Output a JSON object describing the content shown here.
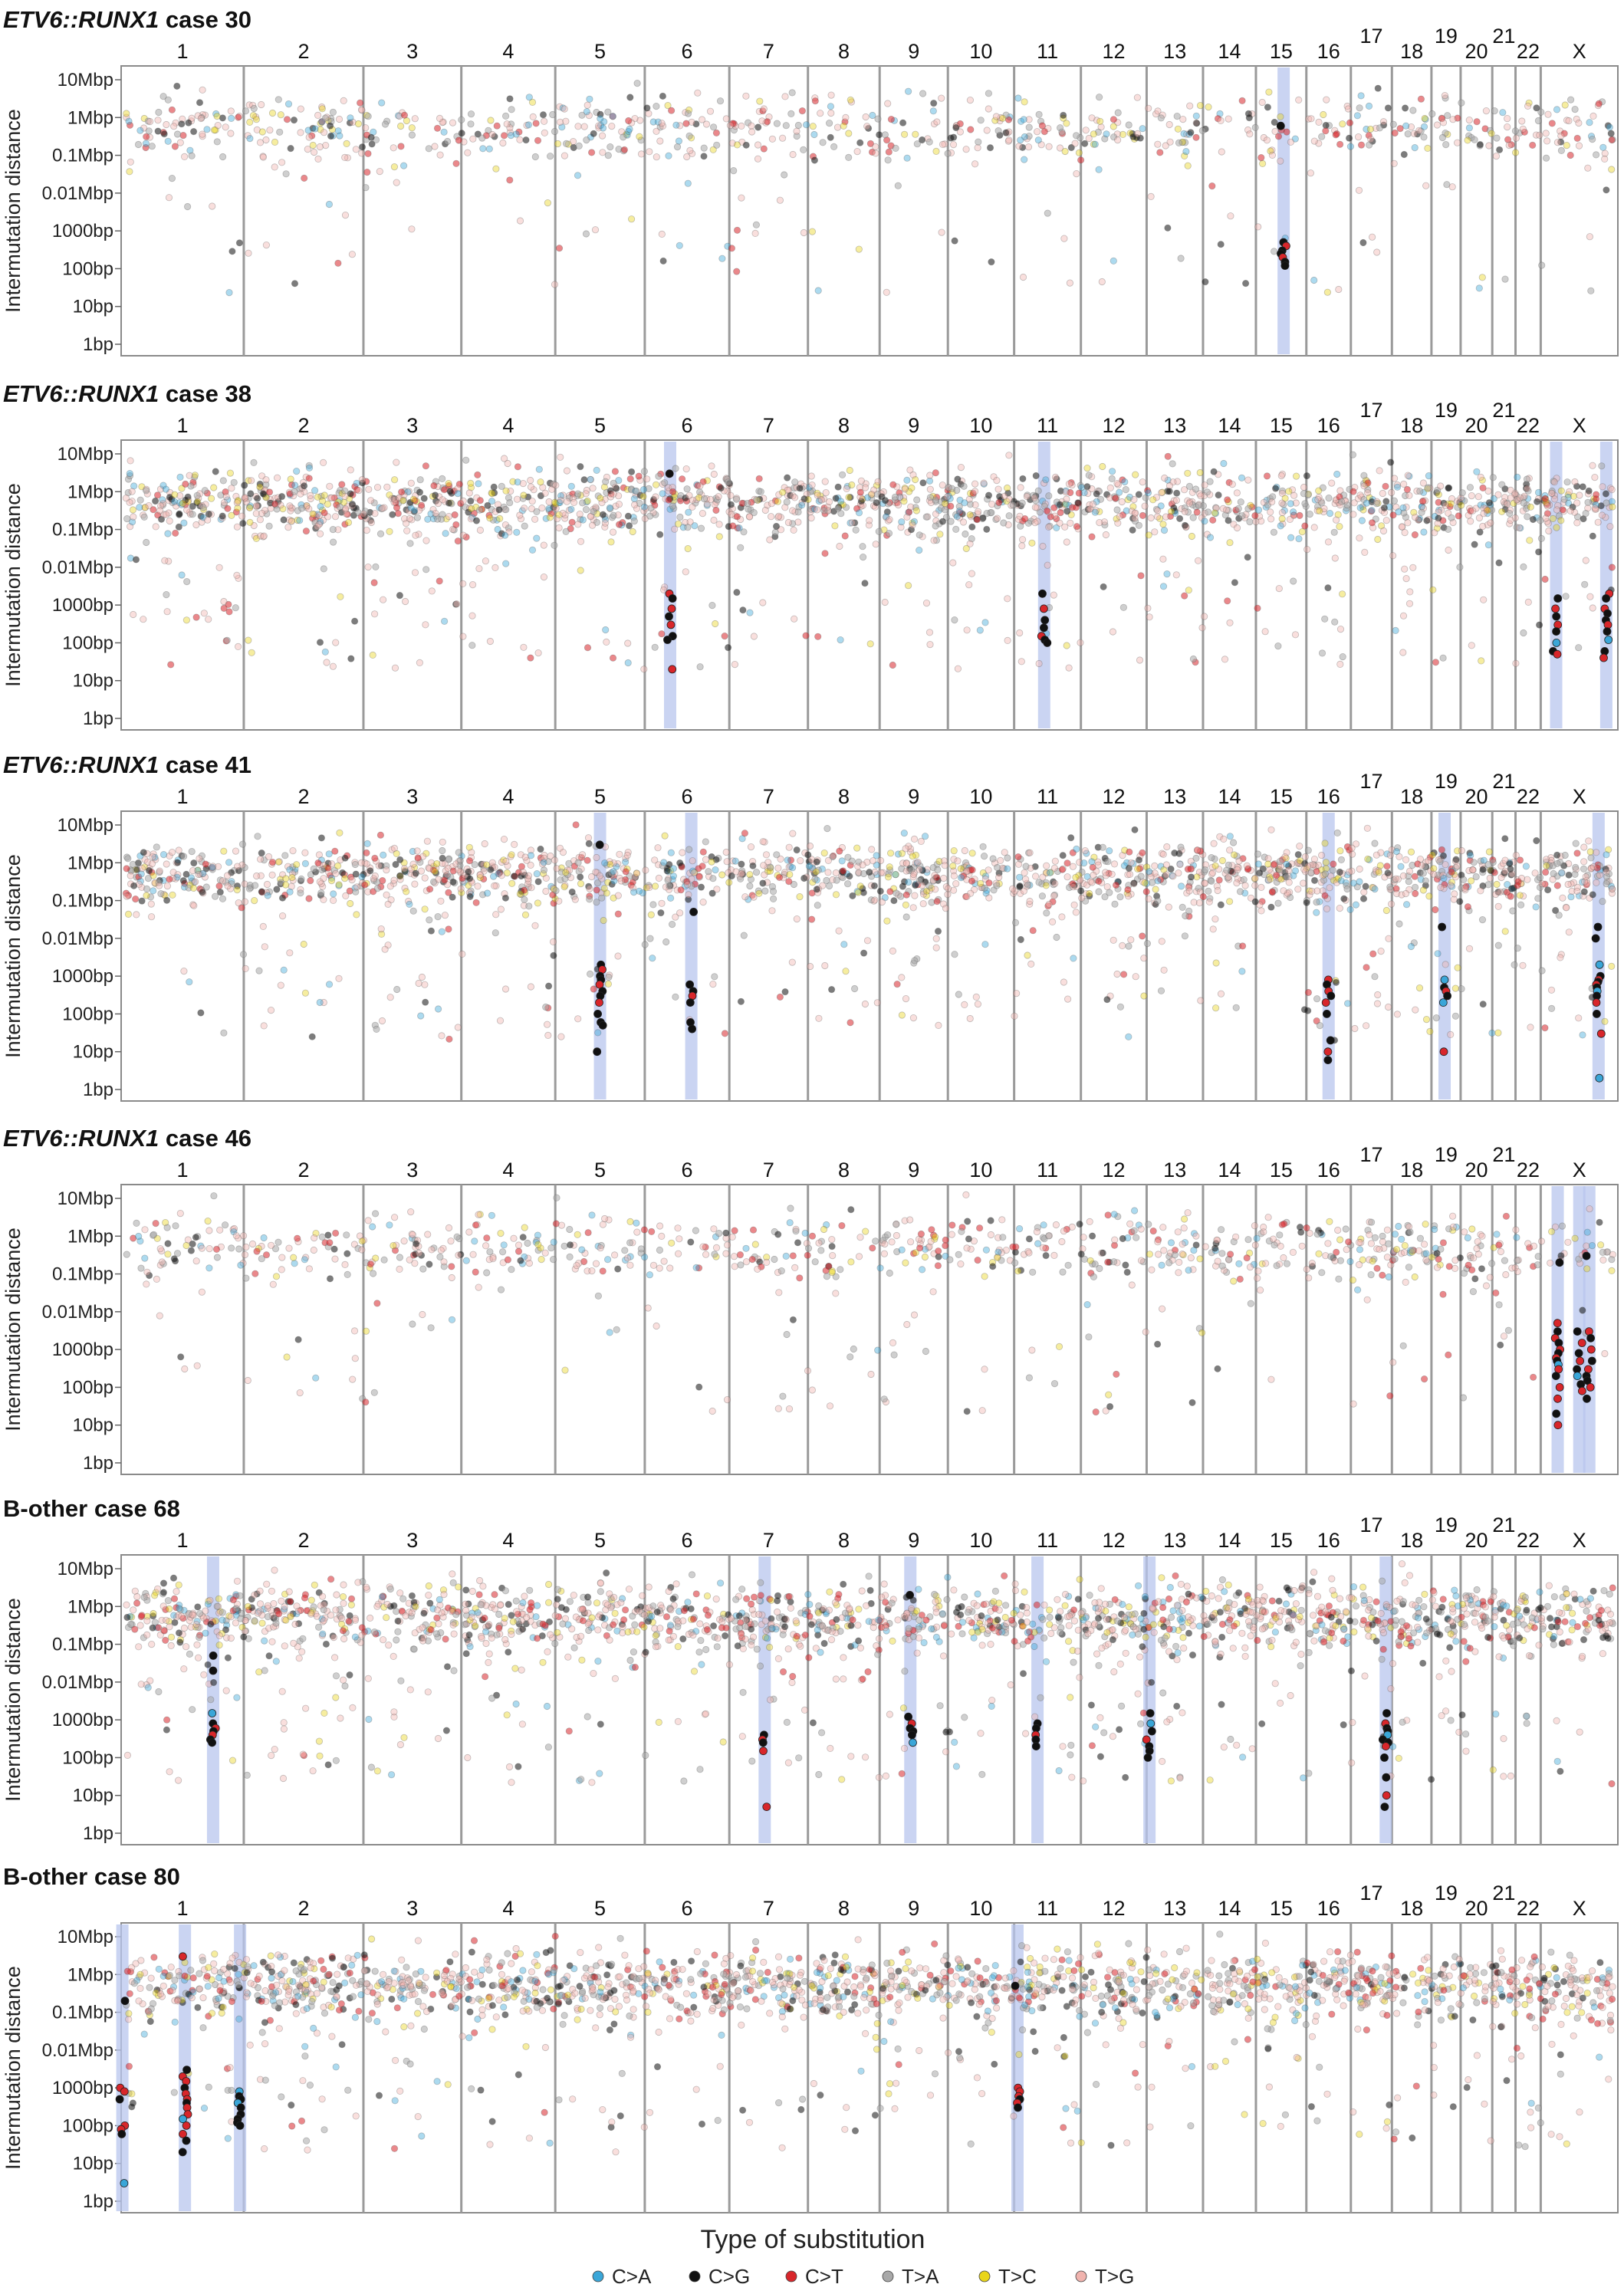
{
  "figure": {
    "y_axis_label": "Intermutation distance",
    "legend_title": "Type of substitution"
  },
  "chart_data": {
    "type": "scatter",
    "yscale": "log10",
    "y_unit": "bp",
    "ylim": [
      1,
      20000000
    ],
    "y_ticks": [
      {
        "value": 1,
        "label": "1bp"
      },
      {
        "value": 10,
        "label": "10bp"
      },
      {
        "value": 100,
        "label": "100bp"
      },
      {
        "value": 1000,
        "label": "1000bp"
      },
      {
        "value": 10000,
        "label": "0.01Mbp"
      },
      {
        "value": 100000,
        "label": "0.1Mbp"
      },
      {
        "value": 1000000,
        "label": "1Mbp"
      },
      {
        "value": 10000000,
        "label": "10Mbp"
      }
    ],
    "x_quantity": "genomic position (chromosomes 1-22, X)",
    "chromosomes": [
      "1",
      "2",
      "3",
      "4",
      "5",
      "6",
      "7",
      "8",
      "9",
      "10",
      "11",
      "12",
      "13",
      "14",
      "15",
      "16",
      "17",
      "18",
      "19",
      "20",
      "21",
      "22",
      "X"
    ],
    "series": [
      {
        "name": "C>A",
        "color": "#3aa6d8"
      },
      {
        "name": "C>G",
        "color": "#111111"
      },
      {
        "name": "C>T",
        "color": "#d8262b"
      },
      {
        "name": "T>A",
        "color": "#a8a8a8"
      },
      {
        "name": "T>C",
        "color": "#e9d51a"
      },
      {
        "name": "T>G",
        "color": "#f0b3ae"
      }
    ],
    "background_density": {
      "density_levels": [
        "low",
        "high"
      ],
      "typical_range_bp": [
        100000,
        5000000
      ]
    },
    "panels": [
      {
        "title_italic": "ETV6::RUNX1",
        "title_rest": " case 30",
        "density": "low",
        "kataegis": [
          {
            "chrom": "15",
            "rel_pos": 0.55,
            "values_bp": [
              600000,
              500,
              400,
              300,
              250,
              200,
              150,
              120
            ],
            "types": [
              "C>G",
              "C>G",
              "C>T",
              "C>G",
              "C>G",
              "C>T",
              "C>G",
              "C>G"
            ]
          }
        ]
      },
      {
        "title_italic": "ETV6::RUNX1",
        "title_rest": " case 38",
        "density": "high",
        "kataegis": [
          {
            "chrom": "6",
            "rel_pos": 0.3,
            "values_bp": [
              3000000,
              2000,
              1500,
              800,
              500,
              300,
              150,
              120,
              20
            ],
            "types": [
              "C>G",
              "C>T",
              "C>G",
              "C>T",
              "C>G",
              "C>T",
              "C>G",
              "C>G",
              "C>T"
            ]
          },
          {
            "chrom": "11",
            "rel_pos": 0.45,
            "values_bp": [
              2000,
              800,
              400,
              250,
              150,
              120,
              100
            ],
            "types": [
              "C>G",
              "C>T",
              "C>G",
              "C>G",
              "C>T",
              "C>G",
              "C>G"
            ]
          },
          {
            "chrom": "X",
            "rel_pos": 0.2,
            "values_bp": [
              1500,
              800,
              500,
              300,
              200,
              100,
              60,
              50
            ],
            "types": [
              "C>G",
              "C>T",
              "C>G",
              "C>T",
              "C>G",
              "C>A",
              "C>G",
              "C>T"
            ]
          },
          {
            "chrom": "X",
            "rel_pos": 0.85,
            "values_bp": [
              2000,
              1500,
              800,
              600,
              400,
              300,
              200,
              120,
              60,
              40
            ],
            "types": [
              "C>T",
              "C>G",
              "C>T",
              "C>G",
              "C>G",
              "C>T",
              "C>G",
              "C>A",
              "C>G",
              "C>T"
            ]
          }
        ]
      },
      {
        "title_italic": "ETV6::RUNX1",
        "title_rest": " case 41",
        "density": "high",
        "kataegis": [
          {
            "chrom": "5",
            "rel_pos": 0.5,
            "values_bp": [
              3000000,
              2000,
              1500,
              1000,
              800,
              600,
              400,
              300,
              200,
              100,
              60,
              50,
              10
            ],
            "types": [
              "C>G",
              "C>G",
              "C>T",
              "C>G",
              "C>G",
              "C>T",
              "C>G",
              "C>G",
              "C>T",
              "C>G",
              "C>G",
              "C>G",
              "C>G"
            ]
          },
          {
            "chrom": "6",
            "rel_pos": 0.55,
            "values_bp": [
              50000,
              600,
              400,
              300,
              200,
              60,
              40
            ],
            "types": [
              "C>G",
              "C>G",
              "C>G",
              "C>T",
              "C>G",
              "C>G",
              "C>G"
            ]
          },
          {
            "chrom": "16",
            "rel_pos": 0.5,
            "values_bp": [
              800,
              600,
              400,
              300,
              200,
              100,
              20,
              10,
              6
            ],
            "types": [
              "C>T",
              "C>G",
              "C>T",
              "C>G",
              "C>T",
              "C>G",
              "C>G",
              "C>T",
              "C>G"
            ]
          },
          {
            "chrom": "19",
            "rel_pos": 0.45,
            "values_bp": [
              20000,
              800,
              500,
              400,
              300,
              200,
              10
            ],
            "types": [
              "C>G",
              "C>A",
              "C>G",
              "C>T",
              "C>G",
              "C>A",
              "C>T"
            ]
          },
          {
            "chrom": "X",
            "rel_pos": 0.75,
            "values_bp": [
              20000,
              10000,
              2000,
              1000,
              800,
              700,
              600,
              500,
              400,
              300,
              200,
              100,
              30,
              2
            ],
            "types": [
              "C>G",
              "C>G",
              "C>A",
              "C>G",
              "C>T",
              "C>G",
              "C>T",
              "C>G",
              "C>A",
              "C>G",
              "C>T",
              "C>G",
              "C>T",
              "C>A"
            ]
          }
        ]
      },
      {
        "title_italic": "ETV6::RUNX1",
        "title_rest": " case 46",
        "density": "low",
        "kataegis": [
          {
            "chrom": "X",
            "rel_pos": 0.22,
            "values_bp": [
              200000,
              5000,
              3000,
              2000,
              1500,
              1000,
              800,
              600,
              500,
              400,
              300,
              200,
              100,
              50,
              20,
              10
            ],
            "types": [
              "C>G",
              "C>T",
              "C>G",
              "C>T",
              "C>G",
              "C>T",
              "C>G",
              "C>T",
              "C>G",
              "C>A",
              "C>T",
              "C>G",
              "C>T",
              "C>T",
              "C>G",
              "C>T"
            ]
          },
          {
            "chrom": "X",
            "rel_pos": 0.5,
            "values_bp": [
              3000,
              1500,
              800,
              500,
              300,
              200,
              120,
              80
            ],
            "types": [
              "C>G",
              "C>T",
              "C>G",
              "C>T",
              "C>G",
              "C>A",
              "C>G",
              "C>T"
            ]
          },
          {
            "chrom": "X",
            "rel_pos": 0.63,
            "values_bp": [
              300000,
              3000,
              2000,
              1000,
              500,
              300,
              200,
              150,
              100,
              50
            ],
            "types": [
              "C>G",
              "C>T",
              "C>G",
              "C>T",
              "C>G",
              "C>T",
              "C>G",
              "C>G",
              "C>T",
              "C>G"
            ]
          }
        ]
      },
      {
        "title_italic": "",
        "title_rest": "B-other case 68",
        "density": "high",
        "kataegis": [
          {
            "chrom": "1",
            "rel_pos": 0.75,
            "values_bp": [
              50000,
              20000,
              1500,
              800,
              600,
              500,
              400,
              300,
              250
            ],
            "types": [
              "C>G",
              "C>G",
              "C>A",
              "C>G",
              "C>T",
              "C>G",
              "C>T",
              "C>G",
              "C>G"
            ]
          },
          {
            "chrom": "7",
            "rel_pos": 0.45,
            "values_bp": [
              400,
              300,
              250,
              150,
              5
            ],
            "types": [
              "C>G",
              "C>T",
              "C>G",
              "C>T",
              "C>T"
            ]
          },
          {
            "chrom": "9",
            "rel_pos": 0.45,
            "values_bp": [
              2000000,
              1200,
              800,
              600,
              500,
              400,
              250
            ],
            "types": [
              "C>G",
              "C>G",
              "C>T",
              "C>G",
              "C>G",
              "C>G",
              "C>A"
            ]
          },
          {
            "chrom": "11",
            "rel_pos": 0.35,
            "values_bp": [
              800,
              600,
              400,
              300,
              200
            ],
            "types": [
              "C>G",
              "C>G",
              "C>T",
              "C>G",
              "C>G"
            ]
          },
          {
            "chrom": "13",
            "rel_pos": 0.05,
            "values_bp": [
              1500,
              800,
              500,
              300,
              200,
              150,
              100
            ],
            "types": [
              "C>G",
              "C>A",
              "C>G",
              "C>T",
              "C>G",
              "C>G",
              "C>G"
            ]
          },
          {
            "chrom": "17",
            "rel_pos": 0.85,
            "values_bp": [
              1500,
              800,
              600,
              500,
              400,
              300,
              250,
              200,
              100,
              30,
              10,
              5
            ],
            "types": [
              "C>G",
              "C>T",
              "C>G",
              "C>G",
              "C>A",
              "C>G",
              "C>G",
              "C>T",
              "C>G",
              "C>G",
              "C>T",
              "C>G"
            ]
          }
        ]
      },
      {
        "title_italic": "",
        "title_rest": "B-other case 80",
        "density": "high",
        "kataegis": [
          {
            "chrom": "1",
            "rel_pos": 0.01,
            "values_bp": [
              200000,
              1000,
              800,
              500,
              100,
              80,
              60,
              3
            ],
            "types": [
              "C>G",
              "C>T",
              "C>T",
              "C>G",
              "C>T",
              "C>T",
              "C>G",
              "C>A"
            ]
          },
          {
            "chrom": "1",
            "rel_pos": 0.52,
            "values_bp": [
              3000000,
              3000,
              2000,
              1500,
              1000,
              700,
              500,
              400,
              300,
              200,
              150,
              100,
              60,
              40,
              20
            ],
            "types": [
              "C>T",
              "C>G",
              "C>T",
              "C>T",
              "C>G",
              "C>T",
              "C>T",
              "C>G",
              "C>T",
              "C>T",
              "C>A",
              "C>T",
              "C>T",
              "C>G",
              "C>G"
            ]
          },
          {
            "chrom": "1",
            "rel_pos": 0.97,
            "values_bp": [
              800,
              600,
              500,
              400,
              300,
              200,
              150,
              120,
              100
            ],
            "types": [
              "C>A",
              "C>G",
              "C>G",
              "C>A",
              "C>G",
              "C>G",
              "C>G",
              "C>G",
              "C>G"
            ]
          },
          {
            "chrom": "11",
            "rel_pos": 0.05,
            "values_bp": [
              500000,
              1000,
              800,
              600,
              500,
              400,
              300
            ],
            "types": [
              "C>G",
              "C>T",
              "C>T",
              "C>T",
              "C>G",
              "C>T",
              "C>G"
            ]
          }
        ]
      }
    ]
  }
}
